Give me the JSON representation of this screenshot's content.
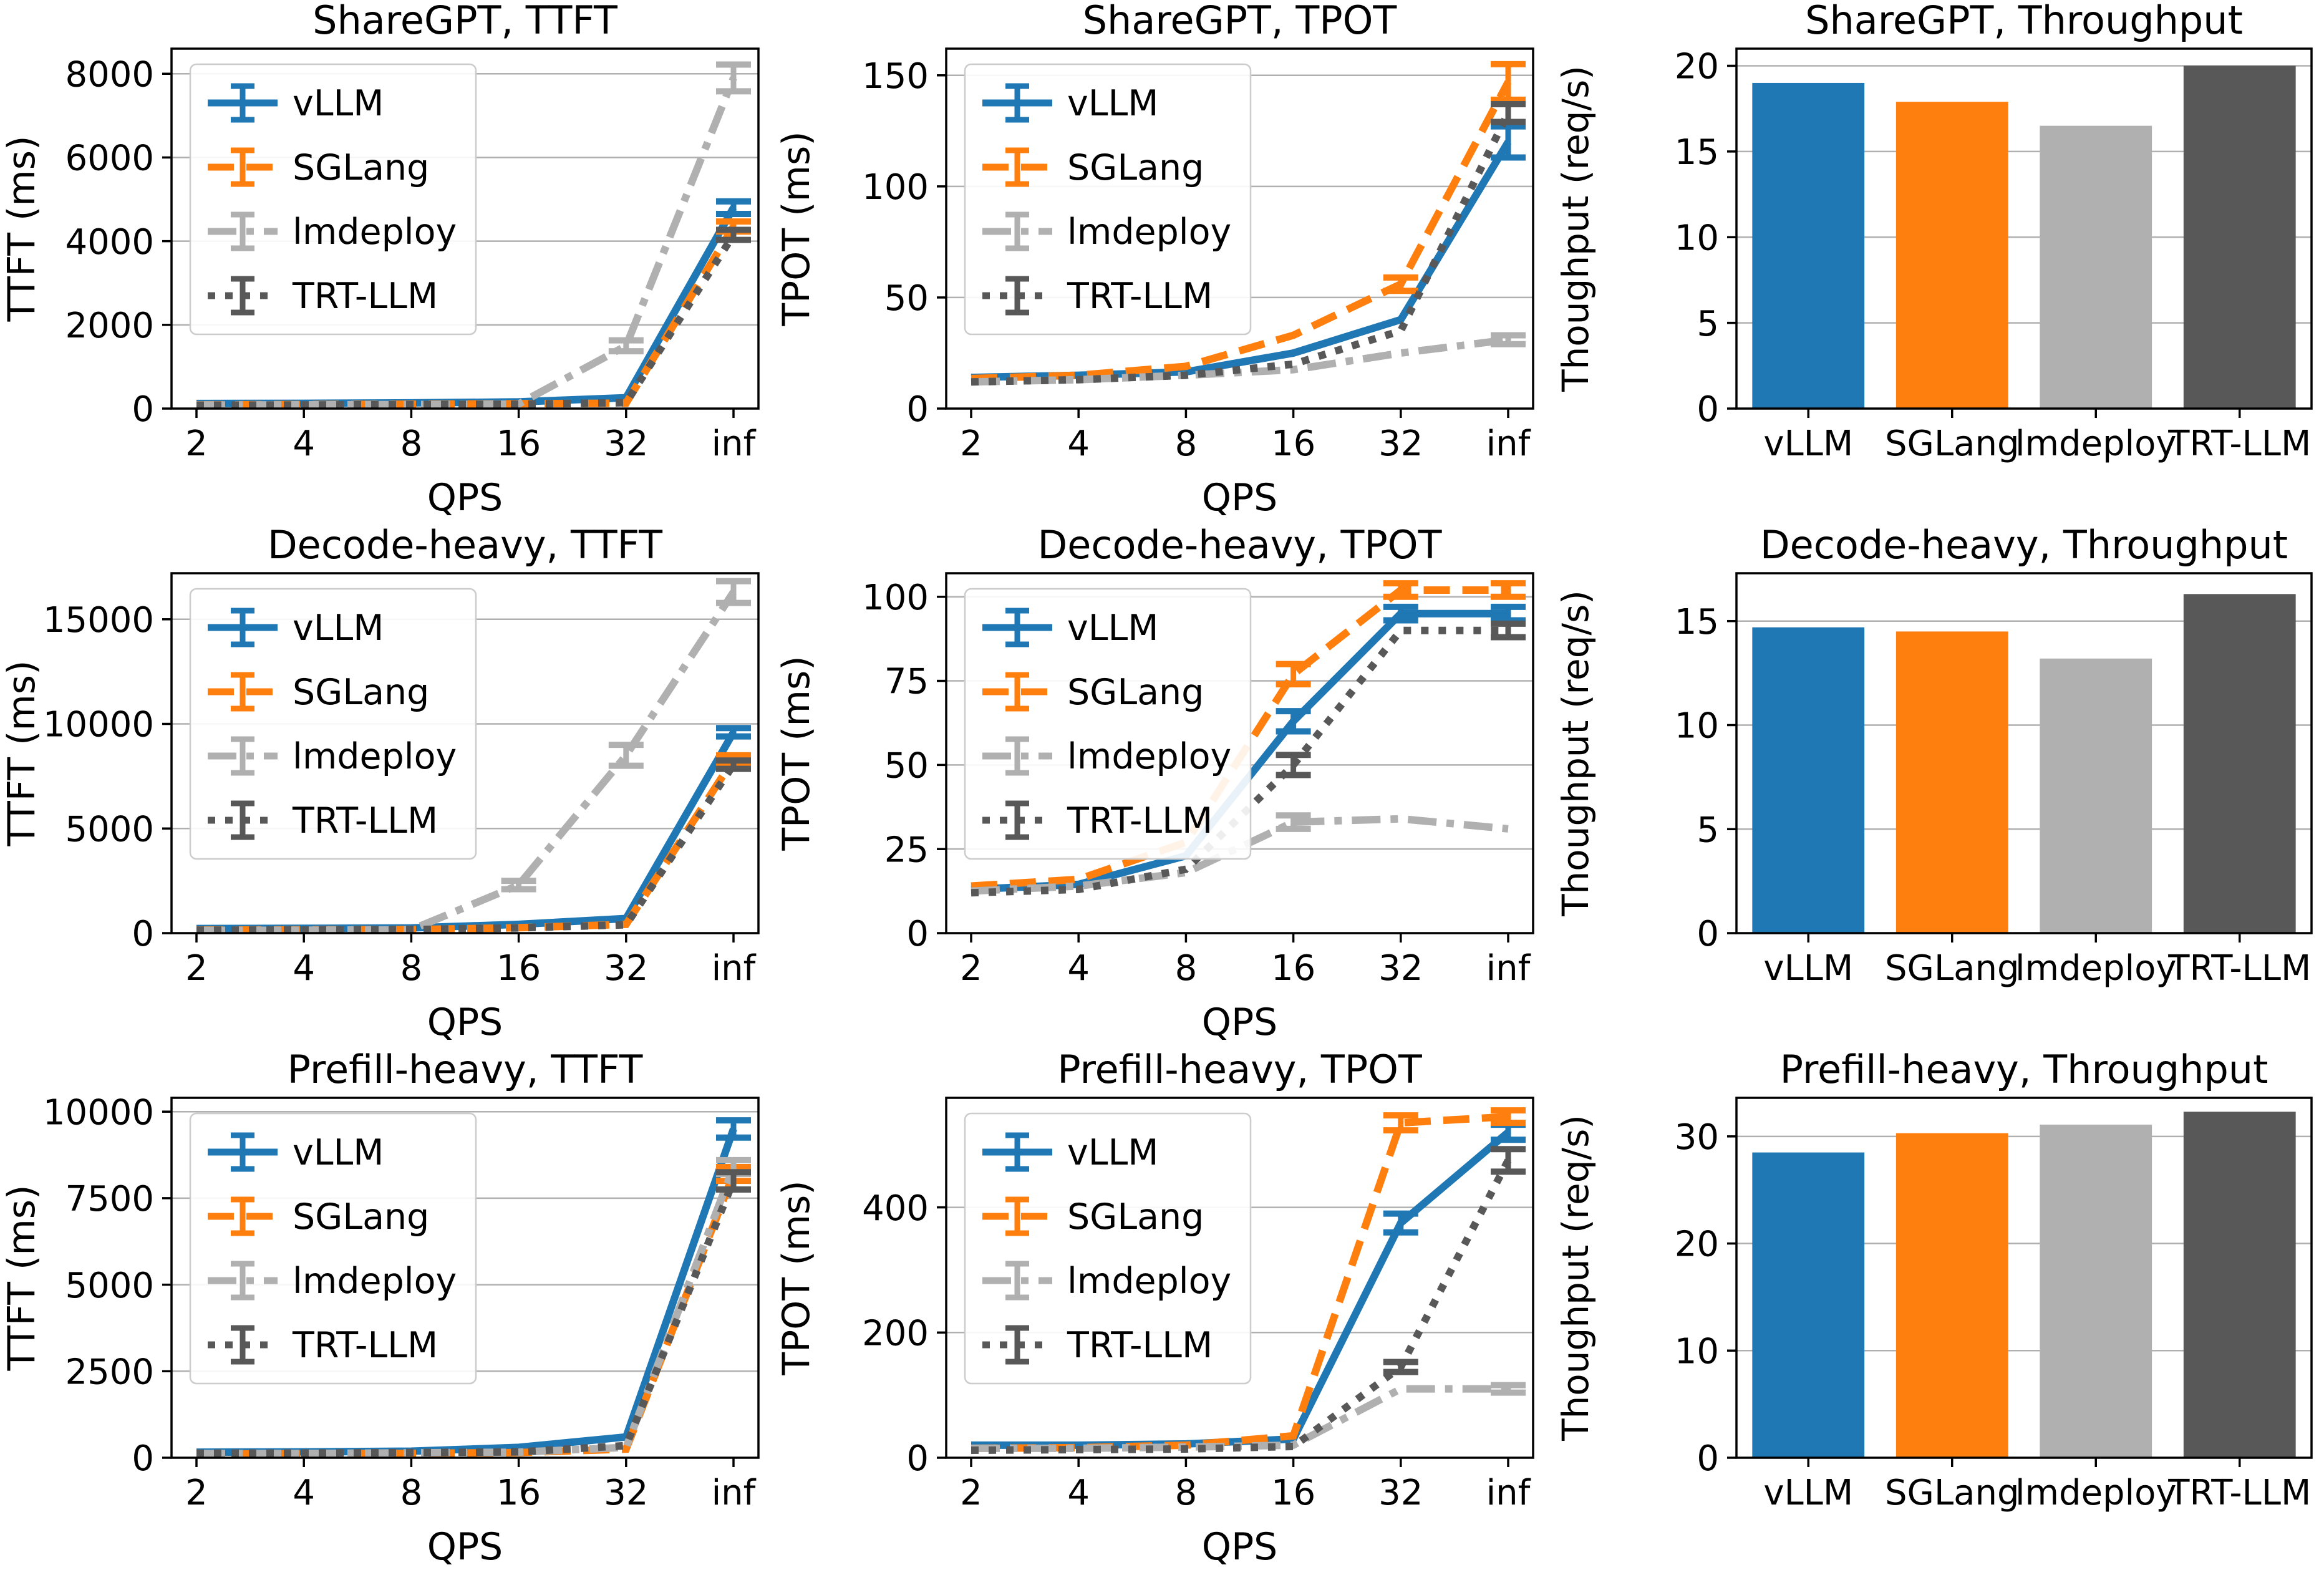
{
  "figure": {
    "background": "#ffffff",
    "x_axis_label": "QPS",
    "x_categories": [
      "2",
      "4",
      "8",
      "16",
      "32",
      "inf"
    ],
    "bar_categories": [
      "vLLM",
      "SGLang",
      "lmdeploy",
      "TRT-LLM"
    ]
  },
  "palette": {
    "vLLM": "#1f77b4",
    "SGLang": "#ff7f0e",
    "lmdeploy": "#b0b0b0",
    "TRT-LLM": "#585858",
    "grid": "#b0b0b0",
    "axis": "#000000",
    "legend_border": "#cccccc",
    "legend_fill": "#ffffff"
  },
  "series_dash": {
    "vLLM": "solid",
    "SGLang": "dashed",
    "lmdeploy": "dashdot",
    "TRT-LLM": "dotted"
  },
  "legend_entries": [
    "vLLM",
    "SGLang",
    "lmdeploy",
    "TRT-LLM"
  ],
  "chart_data": [
    {
      "type": "line",
      "title": "ShareGPT, TTFT",
      "xlabel": "QPS",
      "ylabel": "TTFT (ms)",
      "x": [
        "2",
        "4",
        "8",
        "16",
        "32",
        "inf"
      ],
      "ylim": [
        0,
        8600
      ],
      "yticks": [
        0,
        2000,
        4000,
        6000,
        8000
      ],
      "grid": true,
      "legend_position": "upper-left",
      "series": [
        {
          "name": "vLLM",
          "values": [
            120,
            125,
            135,
            160,
            260,
            4800
          ],
          "err": [
            0,
            0,
            0,
            0,
            0,
            150
          ]
        },
        {
          "name": "SGLang",
          "values": [
            90,
            95,
            105,
            115,
            130,
            4350
          ],
          "err": [
            0,
            0,
            0,
            0,
            0,
            120
          ]
        },
        {
          "name": "lmdeploy",
          "values": [
            85,
            90,
            95,
            110,
            1500,
            7900
          ],
          "err": [
            0,
            0,
            0,
            0,
            130,
            320
          ]
        },
        {
          "name": "TRT-LLM",
          "values": [
            80,
            85,
            95,
            105,
            140,
            4150
          ],
          "err": [
            0,
            0,
            0,
            0,
            0,
            120
          ]
        }
      ]
    },
    {
      "type": "line",
      "title": "ShareGPT, TPOT",
      "xlabel": "QPS",
      "ylabel": "TPOT (ms)",
      "x": [
        "2",
        "4",
        "8",
        "16",
        "32",
        "inf"
      ],
      "ylim": [
        0,
        162
      ],
      "yticks": [
        0,
        50,
        100,
        150
      ],
      "grid": true,
      "legend_position": "upper-left",
      "series": [
        {
          "name": "vLLM",
          "values": [
            14,
            15,
            16.5,
            25,
            40,
            120
          ],
          "err": [
            0,
            0,
            0,
            0,
            0,
            7
          ]
        },
        {
          "name": "SGLang",
          "values": [
            13.5,
            15,
            19,
            33,
            56,
            147
          ],
          "err": [
            0,
            0,
            0,
            0,
            3,
            8
          ]
        },
        {
          "name": "lmdeploy",
          "values": [
            12,
            13,
            15,
            17.5,
            25,
            31
          ],
          "err": [
            0,
            0,
            0,
            0,
            0,
            2
          ]
        },
        {
          "name": "TRT-LLM",
          "values": [
            12,
            13,
            15,
            20,
            35,
            133
          ],
          "err": [
            0,
            0,
            0,
            0,
            0,
            4
          ]
        }
      ]
    },
    {
      "type": "bar",
      "title": "ShareGPT, Throughput",
      "ylabel": "Thoughput (req/s)",
      "categories": [
        "vLLM",
        "SGLang",
        "lmdeploy",
        "TRT-LLM"
      ],
      "values": [
        19.0,
        17.9,
        16.5,
        20.0
      ],
      "ylim": [
        0,
        21
      ],
      "yticks": [
        0,
        5,
        10,
        15,
        20
      ],
      "grid": true
    },
    {
      "type": "line",
      "title": "Decode-heavy, TTFT",
      "xlabel": "QPS",
      "ylabel": "TTFT (ms)",
      "x": [
        "2",
        "4",
        "8",
        "16",
        "32",
        "inf"
      ],
      "ylim": [
        0,
        17200
      ],
      "yticks": [
        0,
        5000,
        10000,
        15000
      ],
      "grid": true,
      "legend_position": "upper-left",
      "series": [
        {
          "name": "vLLM",
          "values": [
            220,
            230,
            250,
            420,
            700,
            9600
          ],
          "err": [
            0,
            0,
            0,
            0,
            0,
            200
          ]
        },
        {
          "name": "SGLang",
          "values": [
            150,
            160,
            170,
            260,
            420,
            8300
          ],
          "err": [
            0,
            0,
            0,
            0,
            0,
            200
          ]
        },
        {
          "name": "lmdeploy",
          "values": [
            130,
            140,
            160,
            2300,
            8500,
            16300
          ],
          "err": [
            0,
            0,
            0,
            200,
            500,
            520
          ]
        },
        {
          "name": "TRT-LLM",
          "values": [
            140,
            150,
            170,
            250,
            400,
            8050
          ],
          "err": [
            0,
            0,
            0,
            0,
            0,
            200
          ]
        }
      ]
    },
    {
      "type": "line",
      "title": "Decode-heavy, TPOT",
      "xlabel": "QPS",
      "ylabel": "TPOT (ms)",
      "x": [
        "2",
        "4",
        "8",
        "16",
        "32",
        "inf"
      ],
      "ylim": [
        0,
        107
      ],
      "yticks": [
        0,
        25,
        50,
        75,
        100
      ],
      "grid": true,
      "legend_position": "upper-left",
      "series": [
        {
          "name": "vLLM",
          "values": [
            13,
            14.5,
            23,
            63,
            95,
            95
          ],
          "err": [
            0,
            0,
            0,
            3,
            2,
            2
          ]
        },
        {
          "name": "SGLang",
          "values": [
            14,
            16,
            27,
            77,
            102,
            102
          ],
          "err": [
            0,
            0,
            0,
            3,
            2,
            2
          ]
        },
        {
          "name": "lmdeploy",
          "values": [
            12.5,
            14,
            18,
            33,
            34,
            31
          ],
          "err": [
            0,
            0,
            0,
            2,
            0,
            0
          ]
        },
        {
          "name": "TRT-LLM",
          "values": [
            12,
            13,
            19,
            50,
            90,
            90
          ],
          "err": [
            0,
            0,
            0,
            3,
            0,
            2
          ]
        }
      ]
    },
    {
      "type": "bar",
      "title": "Decode-heavy, Throughput",
      "ylabel": "Thoughput (req/s)",
      "categories": [
        "vLLM",
        "SGLang",
        "lmdeploy",
        "TRT-LLM"
      ],
      "values": [
        14.7,
        14.5,
        13.2,
        16.3
      ],
      "ylim": [
        0,
        17.3
      ],
      "yticks": [
        0,
        5,
        10,
        15
      ],
      "grid": true
    },
    {
      "type": "line",
      "title": "Prefill-heavy, TTFT",
      "xlabel": "QPS",
      "ylabel": "TTFT (ms)",
      "x": [
        "2",
        "4",
        "8",
        "16",
        "32",
        "inf"
      ],
      "ylim": [
        0,
        10400
      ],
      "yticks": [
        0,
        2500,
        5000,
        7500,
        10000
      ],
      "grid": true,
      "legend_position": "upper-left",
      "series": [
        {
          "name": "vLLM",
          "values": [
            160,
            170,
            190,
            300,
            600,
            9500
          ],
          "err": [
            0,
            0,
            0,
            0,
            0,
            250
          ]
        },
        {
          "name": "SGLang",
          "values": [
            110,
            115,
            125,
            150,
            250,
            8200
          ],
          "err": [
            0,
            0,
            0,
            0,
            0,
            200
          ]
        },
        {
          "name": "lmdeploy",
          "values": [
            120,
            125,
            140,
            160,
            300,
            8400
          ],
          "err": [
            0,
            0,
            0,
            0,
            0,
            200
          ]
        },
        {
          "name": "TRT-LLM",
          "values": [
            130,
            135,
            150,
            170,
            350,
            8000
          ],
          "err": [
            0,
            0,
            0,
            0,
            0,
            250
          ]
        }
      ]
    },
    {
      "type": "line",
      "title": "Prefill-heavy, TPOT",
      "xlabel": "QPS",
      "ylabel": "TPOT (ms)",
      "x": [
        "2",
        "4",
        "8",
        "16",
        "32",
        "inf"
      ],
      "ylim": [
        0,
        575
      ],
      "yticks": [
        0,
        200,
        400
      ],
      "grid": true,
      "legend_position": "upper-left",
      "series": [
        {
          "name": "vLLM",
          "values": [
            20,
            20,
            22,
            30,
            375,
            520
          ],
          "err": [
            0,
            0,
            0,
            0,
            15,
            12
          ]
        },
        {
          "name": "SGLang",
          "values": [
            15,
            16,
            20,
            35,
            535,
            545
          ],
          "err": [
            0,
            0,
            0,
            0,
            12,
            10
          ]
        },
        {
          "name": "lmdeploy",
          "values": [
            15,
            15,
            17,
            20,
            110,
            110
          ],
          "err": [
            0,
            0,
            0,
            0,
            0,
            6
          ]
        },
        {
          "name": "TRT-LLM",
          "values": [
            12,
            13,
            14,
            18,
            145,
            475
          ],
          "err": [
            0,
            0,
            0,
            0,
            8,
            18
          ]
        }
      ]
    },
    {
      "type": "bar",
      "title": "Prefill-heavy, Throughput",
      "ylabel": "Thoughput (req/s)",
      "categories": [
        "vLLM",
        "SGLang",
        "lmdeploy",
        "TRT-LLM"
      ],
      "values": [
        28.5,
        30.3,
        31.1,
        32.3
      ],
      "ylim": [
        0,
        33.6
      ],
      "yticks": [
        0,
        10,
        20,
        30
      ],
      "grid": true
    }
  ]
}
